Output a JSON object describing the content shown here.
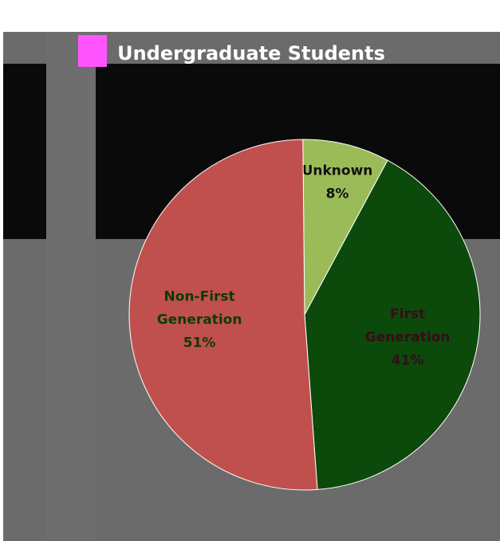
{
  "chart_data": {
    "type": "pie",
    "title": "Undergraduate Students",
    "categories": [
      "Unknown",
      "First Generation",
      "Non-First Generation"
    ],
    "values": [
      8,
      41,
      51
    ],
    "value_labels": [
      "8%",
      "41%",
      "51%"
    ],
    "colors": [
      "#9bbb59",
      "#0b4a0b",
      "#c0504d"
    ]
  }
}
